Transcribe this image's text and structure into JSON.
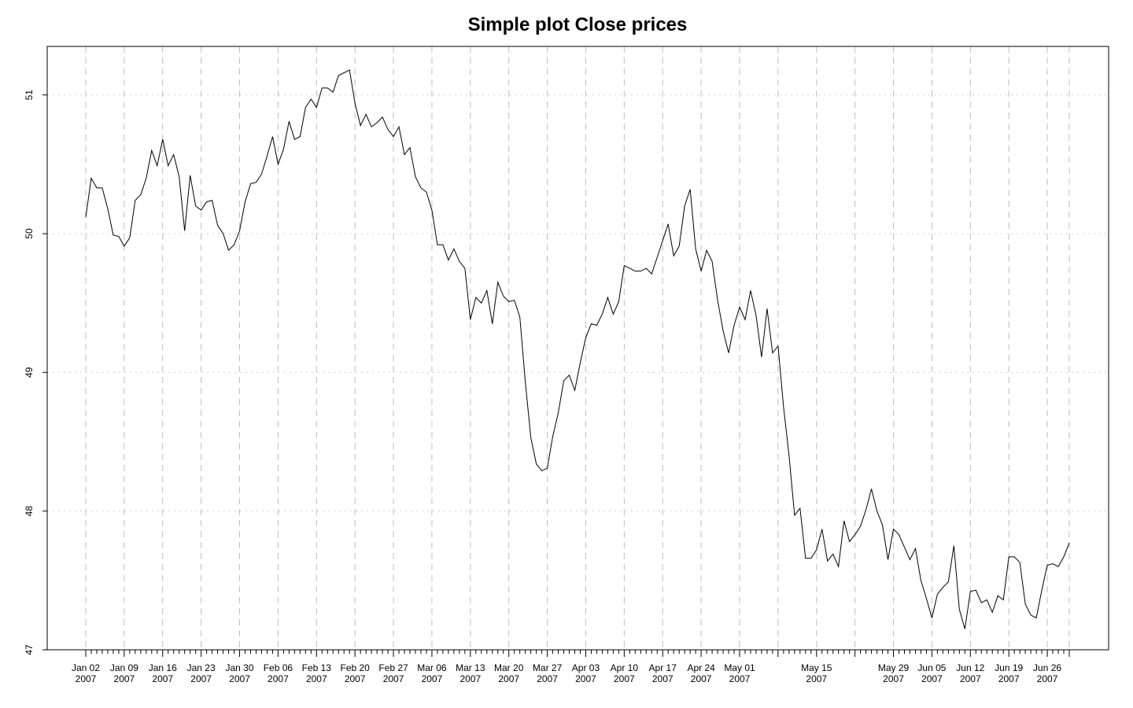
{
  "chart_data": {
    "type": "line",
    "title": "Simple plot Close prices",
    "xlabel": "",
    "ylabel": "",
    "ylim": [
      47,
      51.35
    ],
    "yticks": [
      47,
      48,
      49,
      50,
      51
    ],
    "grid": true,
    "series": [
      {
        "values": [
          50.12,
          50.4,
          50.33,
          50.33,
          50.18,
          49.99,
          49.98,
          49.91,
          49.97,
          50.24,
          50.28,
          50.4,
          50.6,
          50.49,
          50.68,
          50.49,
          50.57,
          50.41,
          50.02,
          50.42,
          50.2,
          50.17,
          50.23,
          50.24,
          50.06,
          50.0,
          49.88,
          49.92,
          50.02,
          50.23,
          50.36,
          50.37,
          50.43,
          50.56,
          50.7,
          50.5,
          50.61,
          50.81,
          50.68,
          50.7,
          50.91,
          50.97,
          50.91,
          51.05,
          51.05,
          51.02,
          51.14,
          51.16,
          51.18,
          50.94,
          50.78,
          50.86,
          50.77,
          50.8,
          50.84,
          50.75,
          50.7,
          50.77,
          50.57,
          50.62,
          50.41,
          50.33,
          50.3,
          50.17,
          49.92,
          49.92,
          49.81,
          49.89,
          49.8,
          49.75,
          49.38,
          49.54,
          49.5,
          49.59,
          49.35,
          49.65,
          49.55,
          49.51,
          49.52,
          49.4,
          48.93,
          48.53,
          48.34,
          48.29,
          48.31,
          48.54,
          48.71,
          48.94,
          48.98,
          48.87,
          49.07,
          49.25,
          49.35,
          49.34,
          49.42,
          49.54,
          49.42,
          49.51,
          49.77,
          49.75,
          49.73,
          49.73,
          49.75,
          49.71,
          49.83,
          49.95,
          50.07,
          49.84,
          49.91,
          50.2,
          50.32,
          49.89,
          49.73,
          49.88,
          49.8,
          49.52,
          49.3,
          49.14,
          49.34,
          49.47,
          49.38,
          49.59,
          49.41,
          49.11,
          49.46,
          49.14,
          49.19,
          48.75,
          48.4,
          47.97,
          48.02,
          47.66,
          47.66,
          47.72,
          47.87,
          47.64,
          47.69,
          47.6,
          47.93,
          47.78,
          47.83,
          47.89,
          48.01,
          48.16,
          48.0,
          47.9,
          47.65,
          47.87,
          47.83,
          47.74,
          47.65,
          47.73,
          47.5,
          47.37,
          47.23,
          47.4,
          47.45,
          47.49,
          47.75,
          47.29,
          47.15,
          47.42,
          47.43,
          47.34,
          47.36,
          47.27,
          47.39,
          47.36,
          47.67,
          47.67,
          47.63,
          47.33,
          47.25,
          47.23,
          47.43,
          47.61,
          47.62,
          47.6,
          47.67,
          47.77
        ]
      }
    ],
    "x_tick_index_count": 180,
    "x_major_ticks": [
      {
        "index": 0,
        "label1": "Jan 02",
        "label2": "2007"
      },
      {
        "index": 7,
        "label1": "Jan 09",
        "label2": "2007"
      },
      {
        "index": 14,
        "label1": "Jan 16",
        "label2": "2007"
      },
      {
        "index": 21,
        "label1": "Jan 23",
        "label2": "2007"
      },
      {
        "index": 28,
        "label1": "Jan 30",
        "label2": "2007"
      },
      {
        "index": 35,
        "label1": "Feb 06",
        "label2": "2007"
      },
      {
        "index": 42,
        "label1": "Feb 13",
        "label2": "2007"
      },
      {
        "index": 49,
        "label1": "Feb 20",
        "label2": "2007"
      },
      {
        "index": 56,
        "label1": "Feb 27",
        "label2": "2007"
      },
      {
        "index": 63,
        "label1": "Mar 06",
        "label2": "2007"
      },
      {
        "index": 70,
        "label1": "Mar 13",
        "label2": "2007"
      },
      {
        "index": 77,
        "label1": "Mar 20",
        "label2": "2007"
      },
      {
        "index": 84,
        "label1": "Mar 27",
        "label2": "2007"
      },
      {
        "index": 91,
        "label1": "Apr 03",
        "label2": "2007"
      },
      {
        "index": 98,
        "label1": "Apr 10",
        "label2": "2007"
      },
      {
        "index": 105,
        "label1": "Apr 17",
        "label2": "2007"
      },
      {
        "index": 112,
        "label1": "Apr 24",
        "label2": "2007"
      },
      {
        "index": 119,
        "label1": "May 01",
        "label2": "2007"
      },
      {
        "index": 126,
        "label1": "",
        "label2": ""
      },
      {
        "index": 133,
        "label1": "May 15",
        "label2": "2007"
      },
      {
        "index": 140,
        "label1": "",
        "label2": ""
      },
      {
        "index": 147,
        "label1": "May 29",
        "label2": "2007"
      },
      {
        "index": 154,
        "label1": "Jun 05",
        "label2": "2007"
      },
      {
        "index": 161,
        "label1": "Jun 12",
        "label2": "2007"
      },
      {
        "index": 168,
        "label1": "Jun 19",
        "label2": "2007"
      },
      {
        "index": 175,
        "label1": "Jun 26",
        "label2": "2007"
      },
      {
        "index": 179,
        "label1": "",
        "label2": ""
      }
    ]
  }
}
